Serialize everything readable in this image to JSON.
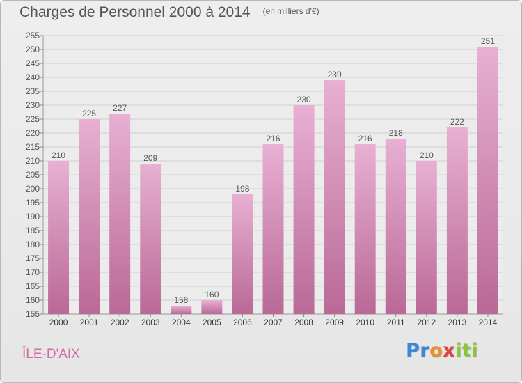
{
  "title": "Charges de Personnel 2000 à 2014",
  "subtitle": "(en milliers d'€)",
  "location": "ÎLE-D'AIX",
  "logo": {
    "part1": "Pr",
    "part2": "o",
    "part3": "x",
    "part4": "iti"
  },
  "colors": {
    "bar_light": "#e8b0d2",
    "bar_dark": "#b96996",
    "grid": "#d0d0d0",
    "text": "#555555",
    "location": "#d36aa0"
  },
  "chart_data": {
    "type": "bar",
    "categories": [
      "2000",
      "2001",
      "2002",
      "2003",
      "2004",
      "2005",
      "2006",
      "2007",
      "2008",
      "2009",
      "2010",
      "2011",
      "2012",
      "2013",
      "2014"
    ],
    "values": [
      210,
      225,
      227,
      209,
      158,
      160,
      198,
      216,
      230,
      239,
      216,
      218,
      210,
      222,
      251
    ],
    "ylim": [
      155,
      255
    ],
    "ytick_step": 5,
    "grid": true,
    "title": "Charges de Personnel 2000 à 2014",
    "ylabel": "(en milliers d'€)",
    "xlabel": ""
  }
}
